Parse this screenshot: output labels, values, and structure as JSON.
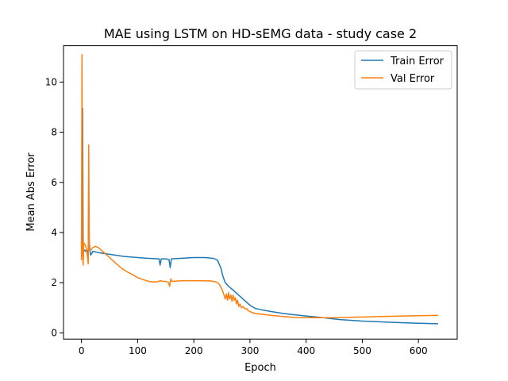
{
  "chart_data": {
    "type": "line",
    "title": "MAE using LSTM on HD-sEMG data - study case 2",
    "xlabel": "Epoch",
    "ylabel": "Mean Abs Error",
    "xlim": [
      -32,
      669
    ],
    "ylim": [
      -0.25,
      11.45
    ],
    "xticks": [
      0,
      100,
      200,
      300,
      400,
      500,
      600
    ],
    "yticks": [
      0,
      2,
      4,
      6,
      8,
      10
    ],
    "grid": false,
    "legend_position": "top-right",
    "series": [
      {
        "name": "Train Error",
        "color": "#1f77b4",
        "points": [
          [
            0,
            3.4
          ],
          [
            1,
            6.5
          ],
          [
            2,
            8.95
          ],
          [
            3,
            3.0
          ],
          [
            4,
            3.3
          ],
          [
            5,
            3.3
          ],
          [
            6,
            3.3
          ],
          [
            7,
            3.25
          ],
          [
            8,
            3.25
          ],
          [
            10,
            3.3
          ],
          [
            11,
            3.0
          ],
          [
            12,
            2.85
          ],
          [
            13,
            5.3
          ],
          [
            14,
            3.6
          ],
          [
            15,
            3.3
          ],
          [
            16,
            3.1
          ],
          [
            18,
            3.15
          ],
          [
            20,
            3.25
          ],
          [
            30,
            3.2
          ],
          [
            50,
            3.13
          ],
          [
            75,
            3.05
          ],
          [
            100,
            3.0
          ],
          [
            120,
            2.97
          ],
          [
            138,
            2.95
          ],
          [
            140,
            2.7
          ],
          [
            142,
            2.95
          ],
          [
            150,
            2.95
          ],
          [
            156,
            2.92
          ],
          [
            158,
            2.6
          ],
          [
            160,
            2.95
          ],
          [
            175,
            2.97
          ],
          [
            200,
            3.0
          ],
          [
            220,
            3.0
          ],
          [
            235,
            2.97
          ],
          [
            242,
            2.9
          ],
          [
            248,
            2.6
          ],
          [
            252,
            2.25
          ],
          [
            256,
            2.0
          ],
          [
            260,
            1.9
          ],
          [
            265,
            1.8
          ],
          [
            270,
            1.7
          ],
          [
            275,
            1.6
          ],
          [
            280,
            1.5
          ],
          [
            285,
            1.4
          ],
          [
            290,
            1.3
          ],
          [
            295,
            1.2
          ],
          [
            300,
            1.1
          ],
          [
            310,
            0.97
          ],
          [
            320,
            0.92
          ],
          [
            340,
            0.84
          ],
          [
            360,
            0.77
          ],
          [
            380,
            0.72
          ],
          [
            400,
            0.67
          ],
          [
            430,
            0.6
          ],
          [
            460,
            0.53
          ],
          [
            500,
            0.47
          ],
          [
            550,
            0.42
          ],
          [
            600,
            0.38
          ],
          [
            635,
            0.36
          ]
        ]
      },
      {
        "name": "Val Error",
        "color": "#ff7f0e",
        "points": [
          [
            0,
            2.9
          ],
          [
            1,
            11.1
          ],
          [
            2,
            3.3
          ],
          [
            3,
            2.7
          ],
          [
            4,
            3.6
          ],
          [
            5,
            3.55
          ],
          [
            7,
            3.5
          ],
          [
            9,
            3.3
          ],
          [
            11,
            3.0
          ],
          [
            12,
            2.75
          ],
          [
            13,
            7.5
          ],
          [
            14,
            3.3
          ],
          [
            15,
            3.3
          ],
          [
            17,
            3.3
          ],
          [
            20,
            3.4
          ],
          [
            25,
            3.45
          ],
          [
            30,
            3.4
          ],
          [
            40,
            3.2
          ],
          [
            50,
            3.0
          ],
          [
            60,
            2.8
          ],
          [
            70,
            2.6
          ],
          [
            80,
            2.45
          ],
          [
            90,
            2.33
          ],
          [
            100,
            2.2
          ],
          [
            110,
            2.12
          ],
          [
            120,
            2.05
          ],
          [
            130,
            2.03
          ],
          [
            138,
            2.05
          ],
          [
            140,
            2.08
          ],
          [
            145,
            2.05
          ],
          [
            150,
            2.05
          ],
          [
            155,
            2.0
          ],
          [
            157,
            1.85
          ],
          [
            159,
            2.15
          ],
          [
            161,
            2.05
          ],
          [
            180,
            2.08
          ],
          [
            200,
            2.08
          ],
          [
            230,
            2.07
          ],
          [
            240,
            2.03
          ],
          [
            245,
            1.95
          ],
          [
            250,
            1.75
          ],
          [
            253,
            1.55
          ],
          [
            256,
            1.35
          ],
          [
            258,
            1.55
          ],
          [
            260,
            1.3
          ],
          [
            262,
            1.6
          ],
          [
            264,
            1.35
          ],
          [
            266,
            1.5
          ],
          [
            268,
            1.25
          ],
          [
            270,
            1.5
          ],
          [
            272,
            1.3
          ],
          [
            274,
            1.4
          ],
          [
            276,
            1.15
          ],
          [
            278,
            1.3
          ],
          [
            280,
            1.05
          ],
          [
            282,
            1.15
          ],
          [
            285,
            1.0
          ],
          [
            288,
            1.05
          ],
          [
            291,
            0.95
          ],
          [
            294,
            0.97
          ],
          [
            297,
            0.88
          ],
          [
            300,
            0.85
          ],
          [
            305,
            0.8
          ],
          [
            310,
            0.77
          ],
          [
            320,
            0.74
          ],
          [
            340,
            0.69
          ],
          [
            360,
            0.65
          ],
          [
            380,
            0.61
          ],
          [
            400,
            0.6
          ],
          [
            450,
            0.6
          ],
          [
            500,
            0.63
          ],
          [
            550,
            0.66
          ],
          [
            600,
            0.68
          ],
          [
            635,
            0.7
          ]
        ]
      }
    ]
  }
}
